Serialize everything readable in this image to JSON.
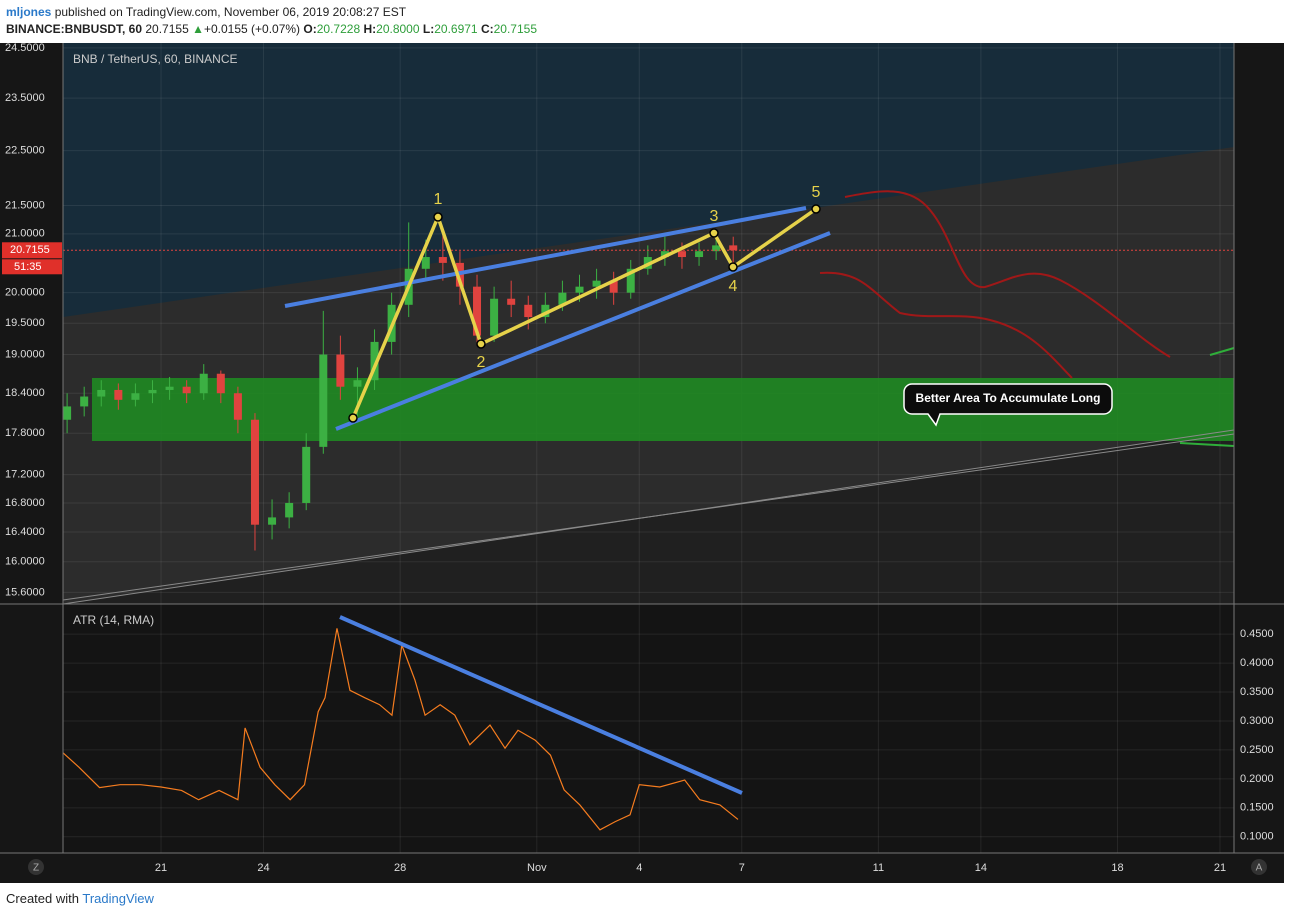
{
  "header": {
    "author": "mljones",
    "published": "published on TradingView.com, November 06, 2019 20:08:27 EST",
    "symbol": "BINANCE:BNBUSDT, 60",
    "last": "20.7155",
    "arrow": "▲",
    "change": "+0.0155 (+0.07%)",
    "open_label": "O:",
    "open": "20.7228",
    "high_label": "H:",
    "high": "20.8000",
    "low_label": "L:",
    "low": "20.6971",
    "close_label": "C:",
    "close": "20.7155"
  },
  "chart_data": [
    {
      "type": "candlestick",
      "title": "BNB / TetherUS, 60, BINANCE",
      "log_scale": true,
      "grid": true,
      "up_color": "#3cb043",
      "down_color": "#e0433f",
      "x": [
        18.25,
        18.75,
        19.25,
        19.75,
        20.25,
        20.75,
        21.25,
        21.75,
        22.25,
        22.75,
        23.25,
        23.75,
        24.25,
        24.75,
        25.25,
        25.75,
        26.25,
        26.75,
        27.25,
        27.75,
        28.25,
        28.75,
        29.25,
        29.75,
        30.25,
        30.75,
        31.25,
        31.75,
        32.25,
        32.75,
        33.25,
        33.75,
        34.25,
        34.75,
        35.25,
        35.75,
        36.25,
        36.75,
        37.25,
        37.75
      ],
      "open": [
        18.0,
        18.2,
        18.35,
        18.45,
        18.3,
        18.4,
        18.45,
        18.5,
        18.4,
        18.7,
        18.4,
        18.0,
        16.5,
        16.6,
        16.8,
        17.6,
        19.0,
        18.5,
        18.6,
        19.2,
        19.8,
        20.4,
        20.6,
        20.5,
        20.1,
        19.3,
        19.9,
        19.8,
        19.6,
        19.8,
        20.0,
        20.1,
        20.2,
        20.0,
        20.4,
        20.6,
        20.7,
        20.6,
        20.7,
        20.8
      ],
      "high": [
        18.4,
        18.5,
        18.6,
        18.55,
        18.55,
        18.6,
        18.65,
        18.6,
        18.85,
        18.75,
        18.5,
        18.1,
        16.85,
        16.95,
        17.8,
        19.7,
        19.3,
        18.8,
        19.4,
        20.0,
        21.2,
        20.9,
        21.0,
        20.7,
        20.3,
        20.1,
        20.2,
        19.95,
        20.0,
        20.2,
        20.3,
        20.4,
        20.35,
        20.55,
        20.8,
        20.95,
        20.85,
        20.85,
        21.0,
        20.95
      ],
      "low": [
        17.8,
        18.05,
        18.2,
        18.15,
        18.2,
        18.25,
        18.3,
        18.25,
        18.3,
        18.25,
        17.8,
        16.15,
        16.3,
        16.45,
        16.7,
        17.5,
        18.3,
        18.0,
        18.45,
        19.0,
        19.6,
        20.2,
        20.2,
        19.8,
        19.17,
        19.2,
        19.6,
        19.4,
        19.5,
        19.7,
        19.85,
        19.9,
        19.8,
        19.9,
        20.3,
        20.45,
        20.4,
        20.45,
        20.55,
        20.43
      ],
      "close": [
        18.2,
        18.35,
        18.45,
        18.3,
        18.4,
        18.45,
        18.5,
        18.4,
        18.7,
        18.4,
        18.0,
        16.5,
        16.6,
        16.8,
        17.6,
        19.0,
        18.5,
        18.6,
        19.2,
        19.8,
        20.4,
        20.6,
        20.5,
        20.1,
        19.3,
        19.9,
        19.8,
        19.6,
        19.8,
        20.0,
        20.1,
        20.2,
        20.0,
        20.4,
        20.6,
        20.7,
        20.6,
        20.7,
        20.8,
        20.7155
      ],
      "xlim": [
        18.13,
        52.41
      ],
      "xticks": [
        21,
        24,
        28,
        {
          "value": 32,
          "label": "Nov"
        },
        {
          "value": 35,
          "label": "4"
        },
        {
          "value": 38,
          "label": "7"
        },
        {
          "value": 42,
          "label": "11"
        },
        {
          "value": 45,
          "label": "14"
        },
        {
          "value": 49,
          "label": "18"
        },
        {
          "value": 52,
          "label": "21"
        }
      ],
      "ylim": [
        15.45,
        24.6
      ],
      "yticks": [
        {
          "value": 24.5,
          "label": "24.5000"
        },
        {
          "value": 23.5,
          "label": "23.5000"
        },
        {
          "value": 22.5,
          "label": "22.5000"
        },
        {
          "value": 21.5,
          "label": "21.5000"
        },
        {
          "value": 21,
          "label": "21.0000"
        },
        {
          "value": 20,
          "label": "20.0000"
        },
        {
          "value": 19.5,
          "label": "19.5000"
        },
        {
          "value": 19,
          "label": "19.0000"
        },
        {
          "value": 18.4,
          "label": "18.4000"
        },
        {
          "value": 17.8,
          "label": "17.8000"
        },
        {
          "value": 17.2,
          "label": "17.2000"
        },
        {
          "value": 16.8,
          "label": "16.8000"
        },
        {
          "value": 16.4,
          "label": "16.4000"
        },
        {
          "value": 16,
          "label": "16.0000"
        },
        {
          "value": 15.6,
          "label": "15.6000"
        }
      ],
      "last_price": 20.7155,
      "countdown": "51:35",
      "annotations": [
        "1",
        "2",
        "3",
        "4",
        "5"
      ],
      "callout": "Better Area To Accumulate Long"
    },
    {
      "type": "line",
      "title": "ATR (14, RMA)",
      "grid": true,
      "x": [
        18.13,
        18.6,
        19.2,
        19.8,
        20.4,
        21.0,
        21.6,
        22.1,
        22.7,
        23.25,
        23.46,
        23.9,
        24.33,
        24.78,
        25.2,
        25.6,
        25.8,
        26.15,
        26.53,
        26.97,
        27.4,
        27.76,
        28.05,
        28.43,
        28.73,
        29.17,
        29.6,
        30.04,
        30.63,
        31.07,
        31.45,
        31.95,
        32.4,
        32.8,
        33.26,
        33.85,
        34.29,
        34.73,
        35.0,
        35.6,
        36.33,
        36.77,
        37.36,
        37.89
      ],
      "series": [
        {
          "color": "#f57c1f",
          "values": [
            0.245,
            0.22,
            0.185,
            0.19,
            0.19,
            0.186,
            0.18,
            0.164,
            0.18,
            0.164,
            0.288,
            0.22,
            0.19,
            0.164,
            0.19,
            0.316,
            0.34,
            0.46,
            0.353,
            0.34,
            0.328,
            0.31,
            0.431,
            0.371,
            0.31,
            0.328,
            0.31,
            0.259,
            0.293,
            0.253,
            0.284,
            0.267,
            0.241,
            0.181,
            0.155,
            0.112,
            0.126,
            0.138,
            0.19,
            0.186,
            0.198,
            0.164,
            0.155,
            0.13
          ]
        }
      ],
      "ylim": [
        0.072,
        0.502
      ],
      "yticks": [
        {
          "value": 0.45,
          "label": "0.4500"
        },
        {
          "value": 0.4,
          "label": "0.4000"
        },
        {
          "value": 0.35,
          "label": "0.3500"
        },
        {
          "value": 0.3,
          "label": "0.3000"
        },
        {
          "value": 0.25,
          "label": "0.2500"
        },
        {
          "value": 0.2,
          "label": "0.2000"
        },
        {
          "value": 0.15,
          "label": "0.1500"
        },
        {
          "value": 0.1,
          "label": "0.1000"
        }
      ]
    }
  ],
  "buttons": [
    "Z",
    "A"
  ],
  "footer": {
    "created_with": "Created with",
    "brand": "TradingView"
  }
}
